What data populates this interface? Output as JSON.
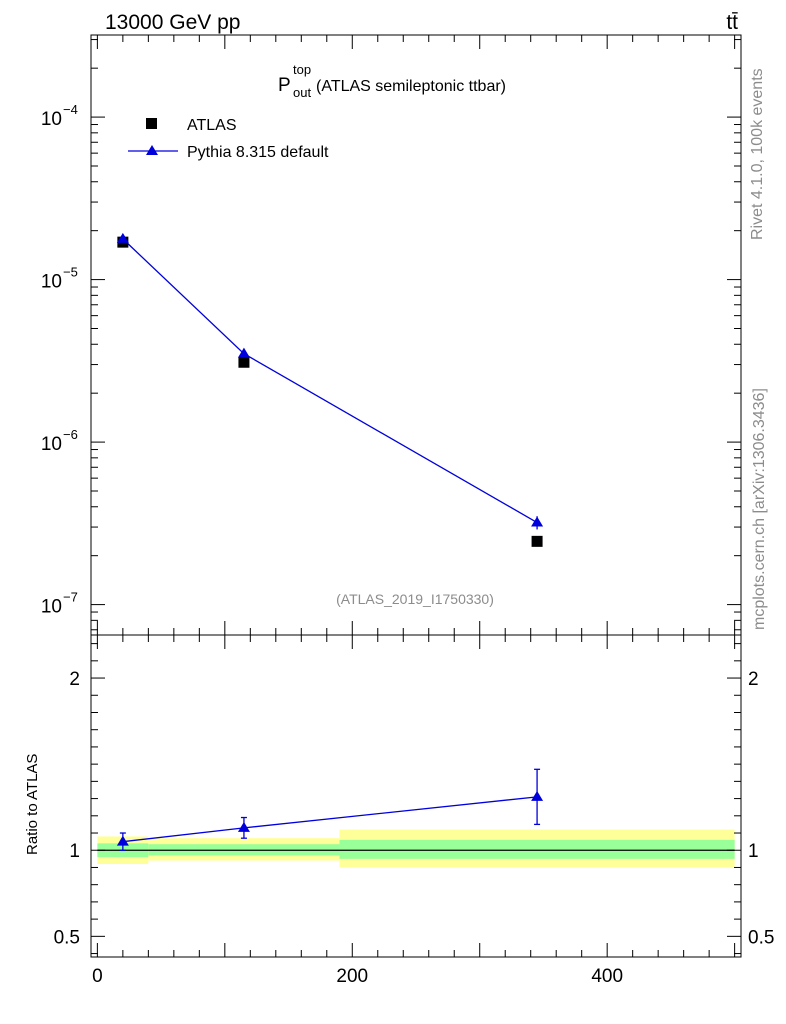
{
  "header": {
    "left": "13000 GeV pp",
    "right": "tt̄"
  },
  "title": {
    "main": "P",
    "sup": "top",
    "sub": "out",
    "rest": " (ATLAS semileptonic ttbar)"
  },
  "side_labels": {
    "rivet": "Rivet 4.1.0,  100k events",
    "mcplots": "mcplots.cern.ch [arXiv:1306.3436]"
  },
  "analysis_id": "(ATLAS_2019_I1750330)",
  "legend": {
    "data_label": "ATLAS",
    "mc_label": "Pythia 8.315 default"
  },
  "colors": {
    "mc": "#0000dd",
    "band_inner": "#99ff99",
    "band_outer": "#ffff99",
    "data": "#000000"
  },
  "chart_data": [
    {
      "type": "scatter",
      "panel": "main",
      "yscale": "log",
      "xlim": [
        -5,
        505
      ],
      "ylim": [
        6.5e-08,
        0.00032
      ],
      "y_ticks": [
        {
          "value": 0.0001,
          "base": "10",
          "exp": "−4"
        },
        {
          "value": 1e-05,
          "base": "10",
          "exp": "−5"
        },
        {
          "value": 1e-06,
          "base": "10",
          "exp": "−6"
        },
        {
          "value": 1e-07,
          "base": "10",
          "exp": "−7"
        }
      ],
      "series": [
        {
          "name": "ATLAS",
          "marker": "square",
          "x": [
            20,
            115,
            345
          ],
          "y": [
            1.7e-05,
            3.1e-06,
            2.45e-07
          ],
          "yerr": [
            0,
            0,
            0
          ]
        },
        {
          "name": "Pythia 8.315 default",
          "marker": "triangle",
          "x": [
            20,
            115,
            345
          ],
          "y": [
            1.78e-05,
            3.5e-06,
            3.2e-07
          ],
          "yerr": [
            5e-07,
            1e-07,
            3e-08
          ]
        }
      ]
    },
    {
      "type": "scatter",
      "panel": "ratio",
      "ylabel": "Ratio to ATLAS",
      "xlim": [
        -5,
        505
      ],
      "ylim": [
        0.38,
        2.25
      ],
      "y_ticks": [
        {
          "value": 0.5,
          "label": "0.5"
        },
        {
          "value": 1,
          "label": "1"
        },
        {
          "value": 2,
          "label": "2"
        }
      ],
      "x_ticks": [
        {
          "value": 0,
          "label": "0"
        },
        {
          "value": 200,
          "label": "200"
        },
        {
          "value": 400,
          "label": "400"
        }
      ],
      "bands": [
        {
          "x0": 0,
          "x1": 40,
          "inner": [
            0.96,
            1.04
          ],
          "outer": [
            0.92,
            1.08
          ]
        },
        {
          "x0": 40,
          "x1": 190,
          "inner": [
            0.97,
            1.035
          ],
          "outer": [
            0.94,
            1.07
          ]
        },
        {
          "x0": 190,
          "x1": 500,
          "inner": [
            0.95,
            1.06
          ],
          "outer": [
            0.9,
            1.12
          ]
        }
      ],
      "series": [
        {
          "name": "Pythia 8.315 default",
          "x": [
            20,
            115,
            345
          ],
          "y": [
            1.05,
            1.13,
            1.31
          ],
          "yerr": [
            0.05,
            0.06,
            0.16
          ]
        }
      ]
    }
  ]
}
